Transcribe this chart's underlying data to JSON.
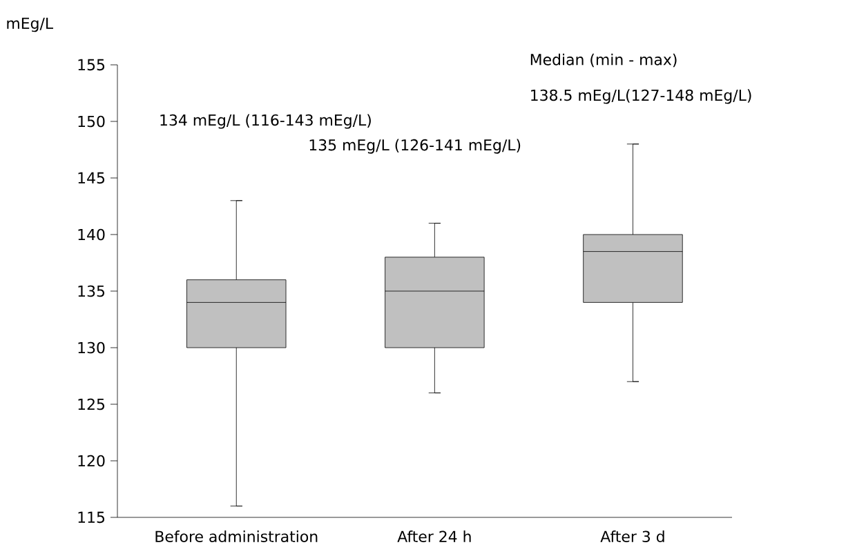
{
  "chart_data": {
    "type": "box",
    "ylabel": "mEg/L",
    "categories": [
      "Before administration",
      "After 24 h",
      "After 3 d"
    ],
    "boxes": [
      {
        "low": 116,
        "q1": 130,
        "median": 134,
        "q3": 136,
        "high": 143
      },
      {
        "low": 126,
        "q1": 130,
        "median": 135,
        "q3": 138,
        "high": 141
      },
      {
        "low": 127,
        "q1": 134,
        "median": 138.5,
        "q3": 140,
        "high": 148
      }
    ],
    "color": "#c0c0c0",
    "ylim": [
      115,
      155
    ],
    "yticks": [
      115,
      120,
      125,
      130,
      135,
      140,
      145,
      150,
      155
    ],
    "annotations": [
      "134 mEg/L (116-143 mEg/L)",
      "135 mEg/L (126-141 mEg/L)",
      "Median (min - max)",
      "138.5 mEg/L(127-148 mEg/L)"
    ],
    "grid": false
  }
}
